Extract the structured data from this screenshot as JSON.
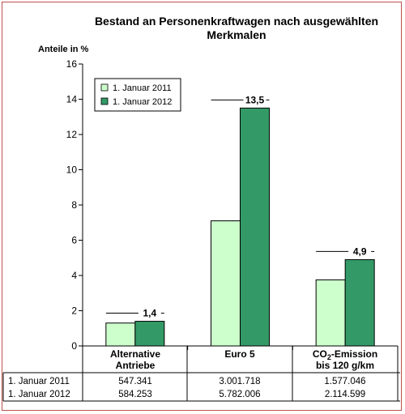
{
  "chart_data": {
    "type": "bar",
    "title_line1": "Bestand an Personenkraftwagen nach ausgewählten",
    "title_line2": "Merkmalen",
    "ylabel": "Anteile in %",
    "ylim": [
      0,
      16
    ],
    "yticks": [
      "0",
      "2",
      "4",
      "6",
      "8",
      "10",
      "12",
      "14",
      "16"
    ],
    "grid": false,
    "legend_position": "top-left",
    "categories": [
      {
        "line1": "Alternative",
        "line2": "Antriebe"
      },
      {
        "line1": "Euro 5",
        "line2": ""
      },
      {
        "line1": "CO",
        "sub": "2",
        "line1_rest": "-Emission",
        "line2": "bis 120 g/km"
      }
    ],
    "series": [
      {
        "name": "1. Januar 2011",
        "color": "#ccffcc",
        "values": [
          1.3,
          7.1,
          3.75
        ],
        "table": [
          "547.341",
          "3.001.718",
          "1.577.046"
        ]
      },
      {
        "name": "1. Januar 2012",
        "color": "#339966",
        "values": [
          1.4,
          13.5,
          4.9
        ],
        "table": [
          "584.253",
          "5.782.006",
          "2.114.599"
        ]
      }
    ],
    "data_labels": [
      "1,4",
      "13,5",
      "4,9"
    ]
  }
}
